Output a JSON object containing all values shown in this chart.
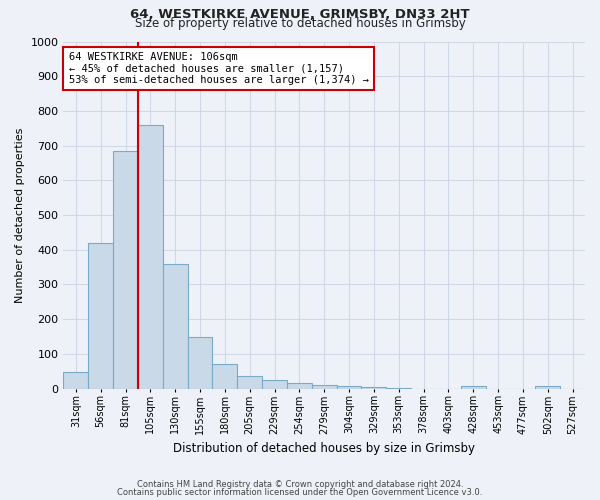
{
  "title1": "64, WESTKIRKE AVENUE, GRIMSBY, DN33 2HT",
  "title2": "Size of property relative to detached houses in Grimsby",
  "xlabel": "Distribution of detached houses by size in Grimsby",
  "ylabel": "Number of detached properties",
  "categories": [
    "31sqm",
    "56sqm",
    "81sqm",
    "105sqm",
    "130sqm",
    "155sqm",
    "180sqm",
    "205sqm",
    "229sqm",
    "254sqm",
    "279sqm",
    "304sqm",
    "329sqm",
    "353sqm",
    "378sqm",
    "403sqm",
    "428sqm",
    "453sqm",
    "477sqm",
    "502sqm",
    "527sqm"
  ],
  "values": [
    48,
    420,
    685,
    760,
    360,
    150,
    70,
    37,
    25,
    15,
    10,
    8,
    5,
    2,
    0,
    0,
    8,
    0,
    0,
    8,
    0
  ],
  "bar_color": "#c9d9e8",
  "bar_edge_color": "#7aaac8",
  "bar_linewidth": 0.8,
  "grid_color": "#d0d8e8",
  "background_color": "#eef2f8",
  "vline_x": 2.5,
  "vline_color": "#cc0000",
  "annotation_text": "64 WESTKIRKE AVENUE: 106sqm\n← 45% of detached houses are smaller (1,157)\n53% of semi-detached houses are larger (1,374) →",
  "annotation_box_color": "#ffffff",
  "annotation_box_edge": "#cc0000",
  "ylim": [
    0,
    1000
  ],
  "yticks": [
    0,
    100,
    200,
    300,
    400,
    500,
    600,
    700,
    800,
    900,
    1000
  ],
  "footer1": "Contains HM Land Registry data © Crown copyright and database right 2024.",
  "footer2": "Contains public sector information licensed under the Open Government Licence v3.0."
}
